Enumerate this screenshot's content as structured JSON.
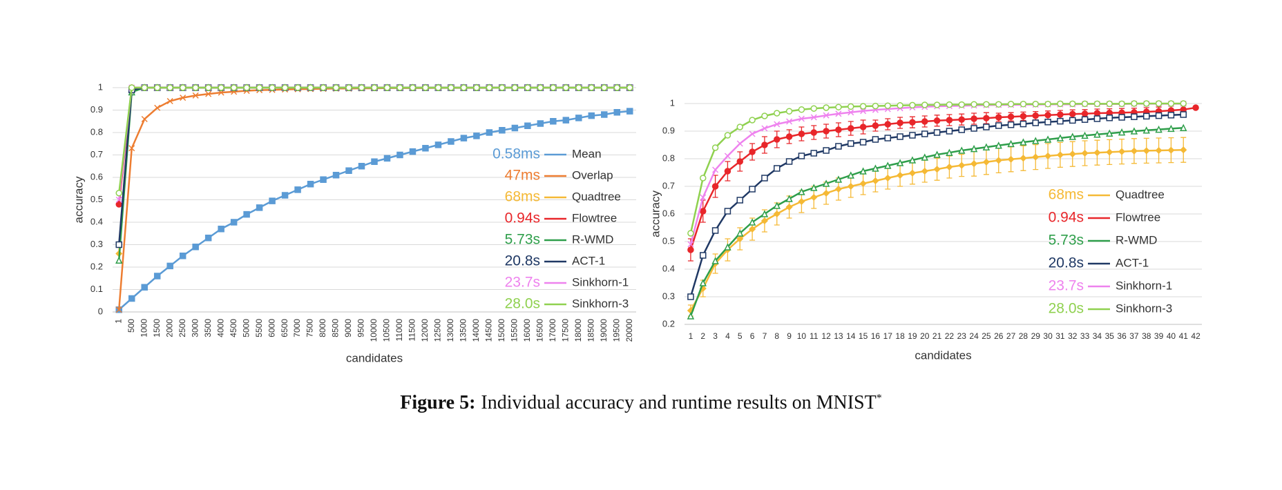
{
  "chart_data": [
    {
      "type": "line",
      "xlabel": "candidates",
      "ylabel": "accuracy",
      "categories": [
        "1",
        "500",
        "1000",
        "1500",
        "2000",
        "2500",
        "3000",
        "3500",
        "4000",
        "4500",
        "5000",
        "5500",
        "6000",
        "6500",
        "7000",
        "7500",
        "8000",
        "8500",
        "9000",
        "9500",
        "10000",
        "10500",
        "11000",
        "11500",
        "12000",
        "12500",
        "13000",
        "13500",
        "14000",
        "14500",
        "15000",
        "15500",
        "16000",
        "16500",
        "17000",
        "17500",
        "18000",
        "18500",
        "19000",
        "19500",
        "20000"
      ],
      "ylim": [
        0,
        1
      ],
      "yticks": [
        0,
        0.1,
        0.2,
        0.3,
        0.4,
        0.5,
        0.6,
        0.7,
        0.8,
        0.9,
        1
      ],
      "grid": true,
      "legend": "lower right",
      "series": [
        {
          "name": "Mean",
          "runtime": "0.58ms",
          "color": "#5b9bd5",
          "marker": "square",
          "values": [
            0.01,
            0.06,
            0.11,
            0.16,
            0.205,
            0.25,
            0.29,
            0.33,
            0.37,
            0.4,
            0.435,
            0.465,
            0.495,
            0.52,
            0.545,
            0.57,
            0.59,
            0.61,
            0.63,
            0.65,
            0.67,
            0.685,
            0.7,
            0.715,
            0.73,
            0.745,
            0.76,
            0.775,
            0.785,
            0.8,
            0.81,
            0.82,
            0.83,
            0.84,
            0.85,
            0.855,
            0.865,
            0.875,
            0.88,
            0.89,
            0.895
          ]
        },
        {
          "name": "Overlap",
          "runtime": "47ms",
          "color": "#ed7d31",
          "marker": "x",
          "values": [
            0.01,
            0.73,
            0.86,
            0.91,
            0.94,
            0.955,
            0.965,
            0.972,
            0.978,
            0.982,
            0.986,
            0.989,
            0.99,
            0.992,
            0.993,
            0.994,
            0.995,
            0.996,
            0.996,
            0.997,
            0.997,
            0.998,
            0.998,
            0.998,
            0.998,
            0.999,
            0.999,
            0.999,
            0.999,
            0.999,
            1,
            1,
            1,
            1,
            1,
            1,
            1,
            1,
            1,
            1,
            1
          ]
        },
        {
          "name": "Quadtree",
          "runtime": "68ms",
          "color": "#f5b935",
          "marker": "diamond",
          "values": [
            0.26,
            1,
            1,
            1,
            1,
            1,
            1,
            1,
            1,
            1,
            1,
            1,
            1,
            1,
            1,
            1,
            1,
            1,
            1,
            1,
            1,
            1,
            1,
            1,
            1,
            1,
            1,
            1,
            1,
            1,
            1,
            1,
            1,
            1,
            1,
            1,
            1,
            1,
            1,
            1,
            1
          ]
        },
        {
          "name": "Flowtree",
          "runtime": "0.94s",
          "color": "#e8262a",
          "marker": "circle",
          "values": [
            0.48,
            1,
            1,
            1,
            1,
            1,
            1,
            1,
            1,
            1,
            1,
            1,
            1,
            1,
            1,
            1,
            1,
            1,
            1,
            1,
            1,
            1,
            1,
            1,
            1,
            1,
            1,
            1,
            1,
            1,
            1,
            1,
            1,
            1,
            1,
            1,
            1,
            1,
            1,
            1,
            1
          ]
        },
        {
          "name": "R-WMD",
          "runtime": "5.73s",
          "color": "#2e9e4a",
          "marker": "triangle",
          "values": [
            0.23,
            0.98,
            1,
            1,
            1,
            1,
            1,
            1,
            1,
            1,
            1,
            1,
            1,
            1,
            1,
            1,
            1,
            1,
            1,
            1,
            1,
            1,
            1,
            1,
            1,
            1,
            1,
            1,
            1,
            1,
            1,
            1,
            1,
            1,
            1,
            1,
            1,
            1,
            1,
            1,
            1
          ]
        },
        {
          "name": "ACT-1",
          "runtime": "20.8s",
          "color": "#1f3864",
          "marker": "open-square",
          "values": [
            0.3,
            0.99,
            1,
            1,
            1,
            1,
            1,
            1,
            1,
            1,
            1,
            1,
            1,
            1,
            1,
            1,
            1,
            1,
            1,
            1,
            1,
            1,
            1,
            1,
            1,
            1,
            1,
            1,
            1,
            1,
            1,
            1,
            1,
            1,
            1,
            1,
            1,
            1,
            1,
            1,
            1
          ]
        },
        {
          "name": "Sinkhorn-1",
          "runtime": "23.7s",
          "color": "#ee82ee",
          "marker": "x",
          "values": [
            0.5,
            1,
            1,
            1,
            1,
            1,
            1,
            1,
            1,
            1,
            1,
            1,
            1,
            1,
            1,
            1,
            1,
            1,
            1,
            1,
            1,
            1,
            1,
            1,
            1,
            1,
            1,
            1,
            1,
            1,
            1,
            1,
            1,
            1,
            1,
            1,
            1,
            1,
            1,
            1,
            1
          ]
        },
        {
          "name": "Sinkhorn-3",
          "runtime": "28.0s",
          "color": "#8fd14f",
          "marker": "open-circle",
          "values": [
            0.53,
            1,
            1,
            1,
            1,
            1,
            1,
            1,
            1,
            1,
            1,
            1,
            1,
            1,
            1,
            1,
            1,
            1,
            1,
            1,
            1,
            1,
            1,
            1,
            1,
            1,
            1,
            1,
            1,
            1,
            1,
            1,
            1,
            1,
            1,
            1,
            1,
            1,
            1,
            1,
            1
          ]
        }
      ]
    },
    {
      "type": "line",
      "xlabel": "candidates",
      "ylabel": "accuracy",
      "categories": [
        "1",
        "2",
        "3",
        "4",
        "5",
        "6",
        "7",
        "8",
        "9",
        "10",
        "11",
        "12",
        "13",
        "14",
        "15",
        "16",
        "17",
        "18",
        "19",
        "20",
        "21",
        "22",
        "23",
        "24",
        "25",
        "26",
        "27",
        "28",
        "29",
        "30",
        "31",
        "32",
        "33",
        "34",
        "35",
        "36",
        "37",
        "38",
        "39",
        "40",
        "41",
        "42"
      ],
      "ylim": [
        0.2,
        1
      ],
      "yticks": [
        0.2,
        0.3,
        0.4,
        0.5,
        0.6,
        0.7,
        0.8,
        0.9,
        1
      ],
      "grid": true,
      "legend": "lower right",
      "series": [
        {
          "name": "Quadtree",
          "runtime": "68ms",
          "color": "#f5b935",
          "marker": "diamond",
          "values": [
            0.25,
            0.33,
            0.42,
            0.47,
            0.51,
            0.545,
            0.575,
            0.6,
            0.625,
            0.645,
            0.66,
            0.675,
            0.69,
            0.7,
            0.71,
            0.72,
            0.73,
            0.74,
            0.748,
            0.755,
            0.762,
            0.77,
            0.776,
            0.782,
            0.788,
            0.794,
            0.798,
            0.802,
            0.806,
            0.81,
            0.814,
            0.817,
            0.82,
            0.822,
            0.824,
            0.826,
            0.828,
            0.829,
            0.83,
            0.831,
            0.832,
            null
          ],
          "errors": [
            0.02,
            0.03,
            0.035,
            0.04,
            0.04,
            0.04,
            0.04,
            0.04,
            0.04,
            0.04,
            0.04,
            0.04,
            0.04,
            0.04,
            0.04,
            0.04,
            0.04,
            0.04,
            0.04,
            0.04,
            0.04,
            0.04,
            0.04,
            0.045,
            0.045,
            0.045,
            0.045,
            0.045,
            0.045,
            0.045,
            0.045,
            0.045,
            0.045,
            0.045,
            0.045,
            0.045,
            0.045,
            0.045,
            0.045,
            0.045,
            0.045,
            null
          ]
        },
        {
          "name": "Flowtree",
          "runtime": "0.94s",
          "color": "#e8262a",
          "marker": "circle",
          "values": [
            0.47,
            0.61,
            0.7,
            0.755,
            0.79,
            0.825,
            0.85,
            0.87,
            0.88,
            0.89,
            0.895,
            0.9,
            0.905,
            0.91,
            0.915,
            0.92,
            0.925,
            0.93,
            0.932,
            0.935,
            0.938,
            0.94,
            0.942,
            0.945,
            0.947,
            0.95,
            0.952,
            0.954,
            0.956,
            0.958,
            0.96,
            0.962,
            0.963,
            0.965,
            0.966,
            0.967,
            0.968,
            0.97,
            0.972,
            0.975,
            0.978,
            0.985
          ],
          "errors": [
            0.04,
            0.04,
            0.04,
            0.035,
            0.035,
            0.03,
            0.03,
            0.03,
            0.025,
            0.025,
            0.025,
            0.025,
            0.025,
            0.025,
            0.025,
            0.02,
            0.02,
            0.02,
            0.02,
            0.02,
            0.02,
            0.02,
            0.02,
            0.02,
            0.02,
            0.015,
            0.015,
            0.015,
            0.015,
            0.015,
            0.015,
            0.015,
            0.015,
            0.015,
            0.015,
            0.015,
            0.015,
            0.015,
            0.015,
            0.015,
            0.015,
            null
          ]
        },
        {
          "name": "R-WMD",
          "runtime": "5.73s",
          "color": "#2e9e4a",
          "marker": "triangle",
          "values": [
            0.23,
            0.35,
            0.43,
            0.48,
            0.53,
            0.57,
            0.6,
            0.63,
            0.655,
            0.68,
            0.695,
            0.71,
            0.725,
            0.74,
            0.755,
            0.765,
            0.775,
            0.785,
            0.795,
            0.805,
            0.815,
            0.822,
            0.83,
            0.836,
            0.842,
            0.848,
            0.854,
            0.86,
            0.865,
            0.87,
            0.875,
            0.88,
            0.884,
            0.888,
            0.892,
            0.896,
            0.9,
            0.903,
            0.906,
            0.909,
            0.912,
            null
          ]
        },
        {
          "name": "ACT-1",
          "runtime": "20.8s",
          "color": "#1f3864",
          "marker": "open-square",
          "values": [
            0.3,
            0.45,
            0.54,
            0.61,
            0.65,
            0.69,
            0.73,
            0.765,
            0.79,
            0.81,
            0.82,
            0.83,
            0.845,
            0.855,
            0.86,
            0.87,
            0.875,
            0.88,
            0.885,
            0.89,
            0.895,
            0.9,
            0.905,
            0.91,
            0.915,
            0.92,
            0.923,
            0.926,
            0.93,
            0.933,
            0.936,
            0.939,
            0.942,
            0.945,
            0.948,
            0.95,
            0.952,
            0.954,
            0.956,
            0.958,
            0.96,
            null
          ]
        },
        {
          "name": "Sinkhorn-1",
          "runtime": "23.7s",
          "color": "#ee82ee",
          "marker": "x",
          "values": [
            0.49,
            0.66,
            0.76,
            0.81,
            0.855,
            0.89,
            0.91,
            0.925,
            0.935,
            0.945,
            0.95,
            0.957,
            0.963,
            0.968,
            0.973,
            0.977,
            0.98,
            0.983,
            0.986,
            0.988,
            0.99,
            0.991,
            0.992,
            0.993,
            0.994,
            0.995,
            0.995,
            0.996,
            0.996,
            0.997,
            0.997,
            0.997,
            0.998,
            0.998,
            0.998,
            0.998,
            0.999,
            0.999,
            0.999,
            0.999,
            0.999,
            null
          ]
        },
        {
          "name": "Sinkhorn-3",
          "runtime": "28.0s",
          "color": "#8fd14f",
          "marker": "open-circle",
          "values": [
            0.53,
            0.73,
            0.84,
            0.885,
            0.915,
            0.94,
            0.955,
            0.965,
            0.972,
            0.978,
            0.982,
            0.985,
            0.987,
            0.989,
            0.99,
            0.991,
            0.992,
            0.993,
            0.994,
            0.995,
            0.995,
            0.996,
            0.996,
            0.997,
            0.997,
            0.997,
            0.998,
            0.998,
            0.998,
            0.998,
            0.999,
            0.999,
            0.999,
            0.999,
            0.999,
            0.999,
            1,
            1,
            1,
            1,
            1,
            null
          ]
        }
      ]
    }
  ],
  "caption": {
    "label": "Figure 5:",
    "text": "Individual accuracy and runtime results on MNIST",
    "mark": "*"
  }
}
